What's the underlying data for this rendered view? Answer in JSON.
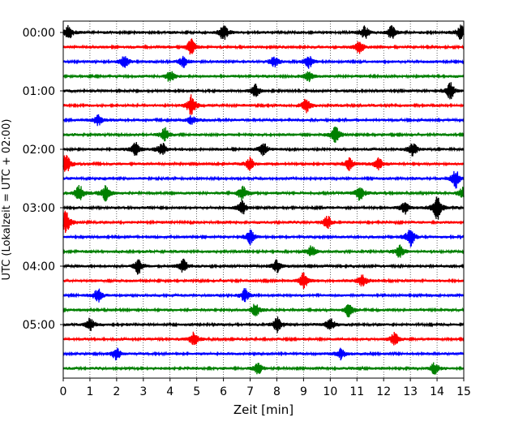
{
  "chart_data": {
    "type": "line",
    "title": "",
    "xlabel": "Zeit  [min]",
    "ylabel": "UTC (Lokalzeit = UTC + 02:00)",
    "xlim": [
      0,
      15
    ],
    "xticks": [
      0,
      1,
      2,
      3,
      4,
      5,
      6,
      7,
      8,
      9,
      10,
      11,
      12,
      13,
      14,
      15
    ],
    "x_grid": "dotted vertical",
    "trace_interval_minutes": 15,
    "trace_count": 24,
    "trace_color_cycle": [
      "#000000",
      "#ff0000",
      "#0000ff",
      "#008000"
    ],
    "ytick_labels": [
      "00:00",
      "01:00",
      "02:00",
      "03:00",
      "04:00",
      "05:00"
    ],
    "traces": [
      {
        "start": "00:00",
        "bursts": [
          [
            0.2,
            1.0
          ],
          [
            6.0,
            1.2
          ],
          [
            11.3,
            0.9
          ],
          [
            12.3,
            0.9
          ],
          [
            14.9,
            1.0
          ]
        ]
      },
      {
        "start": "00:15",
        "bursts": [
          [
            4.8,
            1.1
          ],
          [
            11.1,
            1.0
          ]
        ]
      },
      {
        "start": "00:30",
        "bursts": [
          [
            2.3,
            0.8
          ],
          [
            4.5,
            0.8
          ],
          [
            7.9,
            0.8
          ],
          [
            9.2,
            0.8
          ]
        ]
      },
      {
        "start": "00:45",
        "bursts": [
          [
            4.0,
            0.8
          ],
          [
            9.2,
            0.7
          ]
        ]
      },
      {
        "start": "01:00",
        "bursts": [
          [
            7.2,
            0.9
          ],
          [
            14.5,
            1.2
          ]
        ]
      },
      {
        "start": "01:15",
        "bursts": [
          [
            4.8,
            1.5
          ],
          [
            9.1,
            1.0
          ]
        ]
      },
      {
        "start": "01:30",
        "bursts": [
          [
            1.3,
            0.8
          ],
          [
            4.8,
            0.6
          ]
        ]
      },
      {
        "start": "01:45",
        "bursts": [
          [
            3.8,
            1.0
          ],
          [
            10.2,
            1.3
          ]
        ]
      },
      {
        "start": "02:00",
        "bursts": [
          [
            2.7,
            1.0
          ],
          [
            3.7,
            0.9
          ],
          [
            7.5,
            0.9
          ],
          [
            13.1,
            1.0
          ]
        ]
      },
      {
        "start": "02:15",
        "bursts": [
          [
            0.1,
            1.6
          ],
          [
            7.0,
            0.9
          ],
          [
            10.7,
            0.9
          ],
          [
            11.8,
            1.0
          ]
        ]
      },
      {
        "start": "02:30",
        "bursts": [
          [
            14.7,
            1.3
          ]
        ]
      },
      {
        "start": "02:45",
        "bursts": [
          [
            0.6,
            1.2
          ],
          [
            1.6,
            1.1
          ],
          [
            6.7,
            1.1
          ],
          [
            11.1,
            1.2
          ],
          [
            15.0,
            1.1
          ]
        ]
      },
      {
        "start": "03:00",
        "bursts": [
          [
            6.7,
            1.0
          ],
          [
            12.8,
            0.9
          ],
          [
            14.0,
            1.8
          ]
        ]
      },
      {
        "start": "03:15",
        "bursts": [
          [
            0.1,
            1.6
          ],
          [
            9.9,
            0.9
          ]
        ]
      },
      {
        "start": "03:30",
        "bursts": [
          [
            7.0,
            1.0
          ],
          [
            13.0,
            1.3
          ]
        ]
      },
      {
        "start": "03:45",
        "bursts": [
          [
            9.3,
            0.8
          ],
          [
            12.6,
            0.8
          ]
        ]
      },
      {
        "start": "04:00",
        "bursts": [
          [
            2.8,
            1.1
          ],
          [
            4.5,
            1.0
          ],
          [
            8.0,
            0.9
          ]
        ]
      },
      {
        "start": "04:15",
        "bursts": [
          [
            9.0,
            1.2
          ],
          [
            11.2,
            0.9
          ]
        ]
      },
      {
        "start": "04:30",
        "bursts": [
          [
            1.3,
            1.0
          ],
          [
            6.8,
            0.9
          ]
        ]
      },
      {
        "start": "04:45",
        "bursts": [
          [
            7.2,
            1.0
          ],
          [
            10.7,
            1.0
          ]
        ]
      },
      {
        "start": "05:00",
        "bursts": [
          [
            1.0,
            0.9
          ],
          [
            8.0,
            1.1
          ],
          [
            10.0,
            1.0
          ]
        ]
      },
      {
        "start": "05:15",
        "bursts": [
          [
            4.9,
            1.0
          ],
          [
            12.4,
            0.9
          ]
        ]
      },
      {
        "start": "05:30",
        "bursts": [
          [
            2.0,
            0.9
          ],
          [
            10.4,
            0.8
          ]
        ]
      },
      {
        "start": "05:45",
        "bursts": [
          [
            7.3,
            0.8
          ],
          [
            13.9,
            0.8
          ]
        ]
      }
    ]
  }
}
